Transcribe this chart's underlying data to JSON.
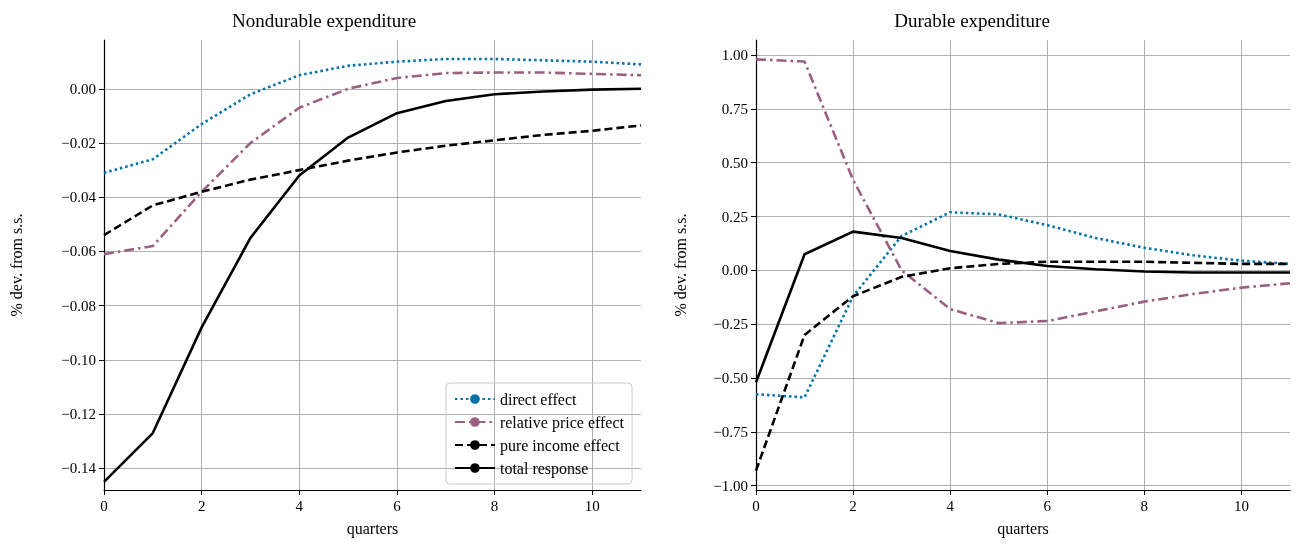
{
  "chart_data": [
    {
      "type": "line",
      "title": "Nondurable expenditure",
      "xlabel": "quarters",
      "ylabel": "% dev. from s.s.",
      "x": [
        0,
        1,
        2,
        3,
        4,
        5,
        6,
        7,
        8,
        9,
        10,
        11
      ],
      "xlim": [
        0,
        11
      ],
      "xticks": [
        0,
        2,
        4,
        6,
        8,
        10
      ],
      "ylim": [
        -0.148,
        0.018
      ],
      "yticks": [
        {
          "value": -0.14,
          "label": "−0.14"
        },
        {
          "value": -0.12,
          "label": "−0.12"
        },
        {
          "value": -0.1,
          "label": "−0.10"
        },
        {
          "value": -0.08,
          "label": "−0.08"
        },
        {
          "value": -0.06,
          "label": "−0.06"
        },
        {
          "value": -0.04,
          "label": "−0.04"
        },
        {
          "value": -0.02,
          "label": "−0.02"
        },
        {
          "value": 0,
          "label": "0.00"
        }
      ],
      "grid": true,
      "legend": "bottom right",
      "marker": "none",
      "series": [
        {
          "name": "direct effect",
          "color": "#0072a8",
          "line_style": "dotted",
          "values": [
            -0.031,
            -0.026,
            -0.013,
            -0.002,
            0.005,
            0.0085,
            0.01,
            0.011,
            0.011,
            0.0105,
            0.01,
            0.009
          ]
        },
        {
          "name": "relative price effect",
          "color": "#9a6080",
          "line_style": "dashdot",
          "values": [
            -0.061,
            -0.058,
            -0.038,
            -0.02,
            -0.007,
            0,
            0.004,
            0.0058,
            0.006,
            0.006,
            0.0055,
            0.005
          ]
        },
        {
          "name": "pure income effect",
          "color": "#000000",
          "line_style": "dashed",
          "values": [
            -0.054,
            -0.043,
            -0.038,
            -0.0335,
            -0.03,
            -0.0265,
            -0.0235,
            -0.021,
            -0.019,
            -0.017,
            -0.0155,
            -0.0135
          ]
        },
        {
          "name": "total response",
          "color": "#000000",
          "line_style": "solid",
          "values": [
            -0.145,
            -0.127,
            -0.088,
            -0.055,
            -0.032,
            -0.018,
            -0.009,
            -0.0045,
            -0.002,
            -0.001,
            -0.0003,
            0
          ]
        }
      ]
    },
    {
      "type": "line",
      "title": "Durable expenditure",
      "xlabel": "quarters",
      "ylabel": "% dev. from s.s.",
      "x": [
        0,
        1,
        2,
        3,
        4,
        5,
        6,
        7,
        8,
        9,
        10,
        11
      ],
      "xlim": [
        0,
        11
      ],
      "xticks": [
        0,
        2,
        4,
        6,
        8,
        10
      ],
      "ylim": [
        -1.02,
        1.07
      ],
      "yticks": [
        {
          "value": -1,
          "label": "−1.00"
        },
        {
          "value": -0.75,
          "label": "−0.75"
        },
        {
          "value": -0.5,
          "label": "−0.50"
        },
        {
          "value": -0.25,
          "label": "−0.25"
        },
        {
          "value": 0,
          "label": "0.00"
        },
        {
          "value": 0.25,
          "label": "0.25"
        },
        {
          "value": 0.5,
          "label": "0.50"
        },
        {
          "value": 0.75,
          "label": "0.75"
        },
        {
          "value": 1,
          "label": "1.00"
        }
      ],
      "grid": true,
      "legend": false,
      "marker": "none",
      "series": [
        {
          "color": "#0072a8",
          "line_style": "dotted",
          "values": [
            -0.575,
            -0.59,
            -0.12,
            0.16,
            0.27,
            0.26,
            0.21,
            0.15,
            0.105,
            0.07,
            0.045,
            0.03
          ]
        },
        {
          "color": "#9a6080",
          "line_style": "dashdot",
          "values": [
            0.98,
            0.97,
            0.42,
            0,
            -0.18,
            -0.245,
            -0.235,
            -0.19,
            -0.145,
            -0.11,
            -0.08,
            -0.06
          ]
        },
        {
          "color": "#000000",
          "line_style": "dashed",
          "values": [
            -0.93,
            -0.3,
            -0.12,
            -0.03,
            0.01,
            0.03,
            0.04,
            0.04,
            0.04,
            0.035,
            0.03,
            0.03
          ]
        },
        {
          "color": "#000000",
          "line_style": "solid",
          "values": [
            -0.52,
            0.075,
            0.18,
            0.15,
            0.09,
            0.05,
            0.02,
            0.005,
            -0.005,
            -0.01,
            -0.01,
            -0.01
          ]
        }
      ]
    }
  ]
}
